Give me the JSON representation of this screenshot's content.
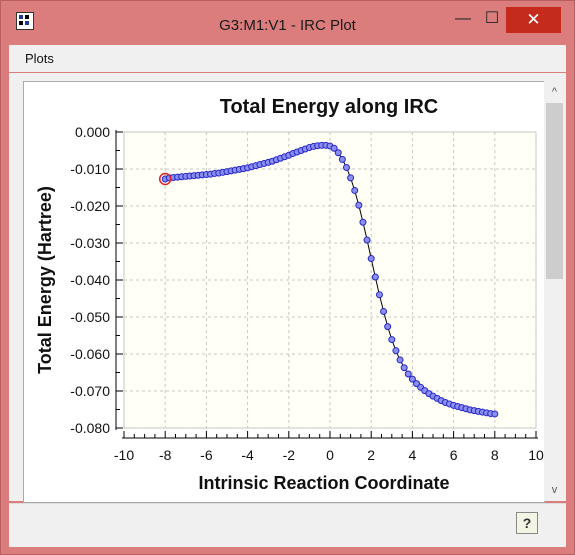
{
  "window": {
    "title": "G3:M1:V1 - IRC Plot",
    "controls": {
      "minimize": "—",
      "maximize": "☐",
      "close": "✕"
    }
  },
  "menu": {
    "items": [
      "Plots"
    ]
  },
  "scrollbar": {
    "up": "^",
    "down": "v"
  },
  "help_button": {
    "label": "?"
  },
  "chart_data": {
    "type": "scatter",
    "title": "Total Energy along IRC",
    "xlabel": "Intrinsic Reaction Coordinate",
    "ylabel": "Total Energy (Hartree)",
    "xlim": [
      -10,
      10
    ],
    "ylim": [
      -0.08,
      0.0
    ],
    "xticks": [
      "-10",
      "-8",
      "-6",
      "-4",
      "-2",
      "0",
      "2",
      "4",
      "6",
      "8",
      "10"
    ],
    "yticks": [
      "0.000",
      "-0.010",
      "-0.020",
      "-0.030",
      "-0.040",
      "-0.050",
      "-0.060",
      "-0.070",
      "-0.080"
    ],
    "grid": true,
    "highlighted_point": {
      "x": -8.0,
      "y": -0.0127
    },
    "series": [
      {
        "x": [
          -8.0,
          -7.8,
          -7.6,
          -7.4,
          -7.2,
          -7.0,
          -6.8,
          -6.6,
          -6.4,
          -6.2,
          -6.0,
          -5.8,
          -5.6,
          -5.4,
          -5.2,
          -5.0,
          -4.8,
          -4.6,
          -4.4,
          -4.2,
          -4.0,
          -3.8,
          -3.6,
          -3.4,
          -3.2,
          -3.0,
          -2.8,
          -2.6,
          -2.4,
          -2.2,
          -2.0,
          -1.8,
          -1.6,
          -1.4,
          -1.2,
          -1.0,
          -0.8,
          -0.6,
          -0.4,
          -0.2,
          0.0,
          0.2,
          0.4,
          0.6,
          0.8,
          1.0,
          1.2,
          1.4,
          1.6,
          1.8,
          2.0,
          2.2,
          2.4,
          2.6,
          2.8,
          3.0,
          3.2,
          3.4,
          3.6,
          3.8,
          4.0,
          4.2,
          4.4,
          4.6,
          4.8,
          5.0,
          5.2,
          5.4,
          5.6,
          5.8,
          6.0,
          6.2,
          6.4,
          6.6,
          6.8,
          7.0,
          7.2,
          7.4,
          7.6,
          7.8,
          8.0
        ],
        "y": [
          -0.0127,
          -0.0124,
          -0.0123,
          -0.0122,
          -0.0121,
          -0.012,
          -0.0119,
          -0.0118,
          -0.0117,
          -0.0116,
          -0.0115,
          -0.0114,
          -0.0112,
          -0.0111,
          -0.0109,
          -0.0107,
          -0.0105,
          -0.0103,
          -0.0101,
          -0.0099,
          -0.0097,
          -0.0094,
          -0.0091,
          -0.0088,
          -0.0085,
          -0.0082,
          -0.0079,
          -0.0075,
          -0.0071,
          -0.0067,
          -0.0063,
          -0.0058,
          -0.0054,
          -0.005,
          -0.0046,
          -0.0042,
          -0.0039,
          -0.0037,
          -0.0036,
          -0.0036,
          -0.0038,
          -0.0044,
          -0.0056,
          -0.0074,
          -0.0096,
          -0.0124,
          -0.0158,
          -0.0198,
          -0.0244,
          -0.0292,
          -0.0342,
          -0.0392,
          -0.044,
          -0.0485,
          -0.0526,
          -0.0561,
          -0.0591,
          -0.0616,
          -0.0637,
          -0.0654,
          -0.0668,
          -0.068,
          -0.069,
          -0.0699,
          -0.0707,
          -0.0714,
          -0.072,
          -0.0726,
          -0.0731,
          -0.0735,
          -0.0739,
          -0.0742,
          -0.0745,
          -0.0748,
          -0.0751,
          -0.0753,
          -0.0755,
          -0.0757,
          -0.0759,
          -0.0761,
          -0.0762
        ]
      }
    ]
  },
  "colors": {
    "titlebar": "#dc7d7d",
    "close_button": "#c42b1c",
    "point_fill": "#8a8ff0",
    "point_stroke": "#2626c8",
    "highlight": "#e02020",
    "curve": "#000000"
  }
}
